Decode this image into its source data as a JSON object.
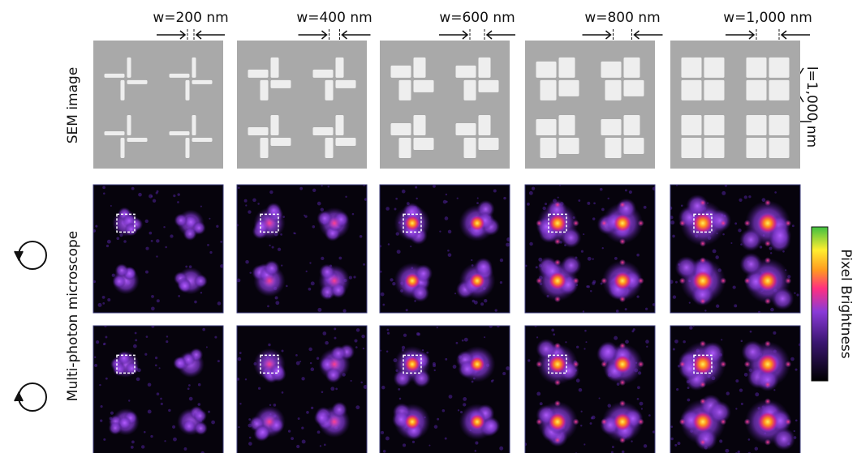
{
  "columns": [
    {
      "label": "w=200 nm"
    },
    {
      "label": "w=400 nm"
    },
    {
      "label": "w=600 nm"
    },
    {
      "label": "w=800 nm"
    },
    {
      "label": "w=1,000 nm"
    }
  ],
  "rows": {
    "sem": "SEM image",
    "microscope": "Multi-photon microscope"
  },
  "scale_label": "l=1,000 nm",
  "colorbar": {
    "label": "Pixel Brightness"
  }
}
